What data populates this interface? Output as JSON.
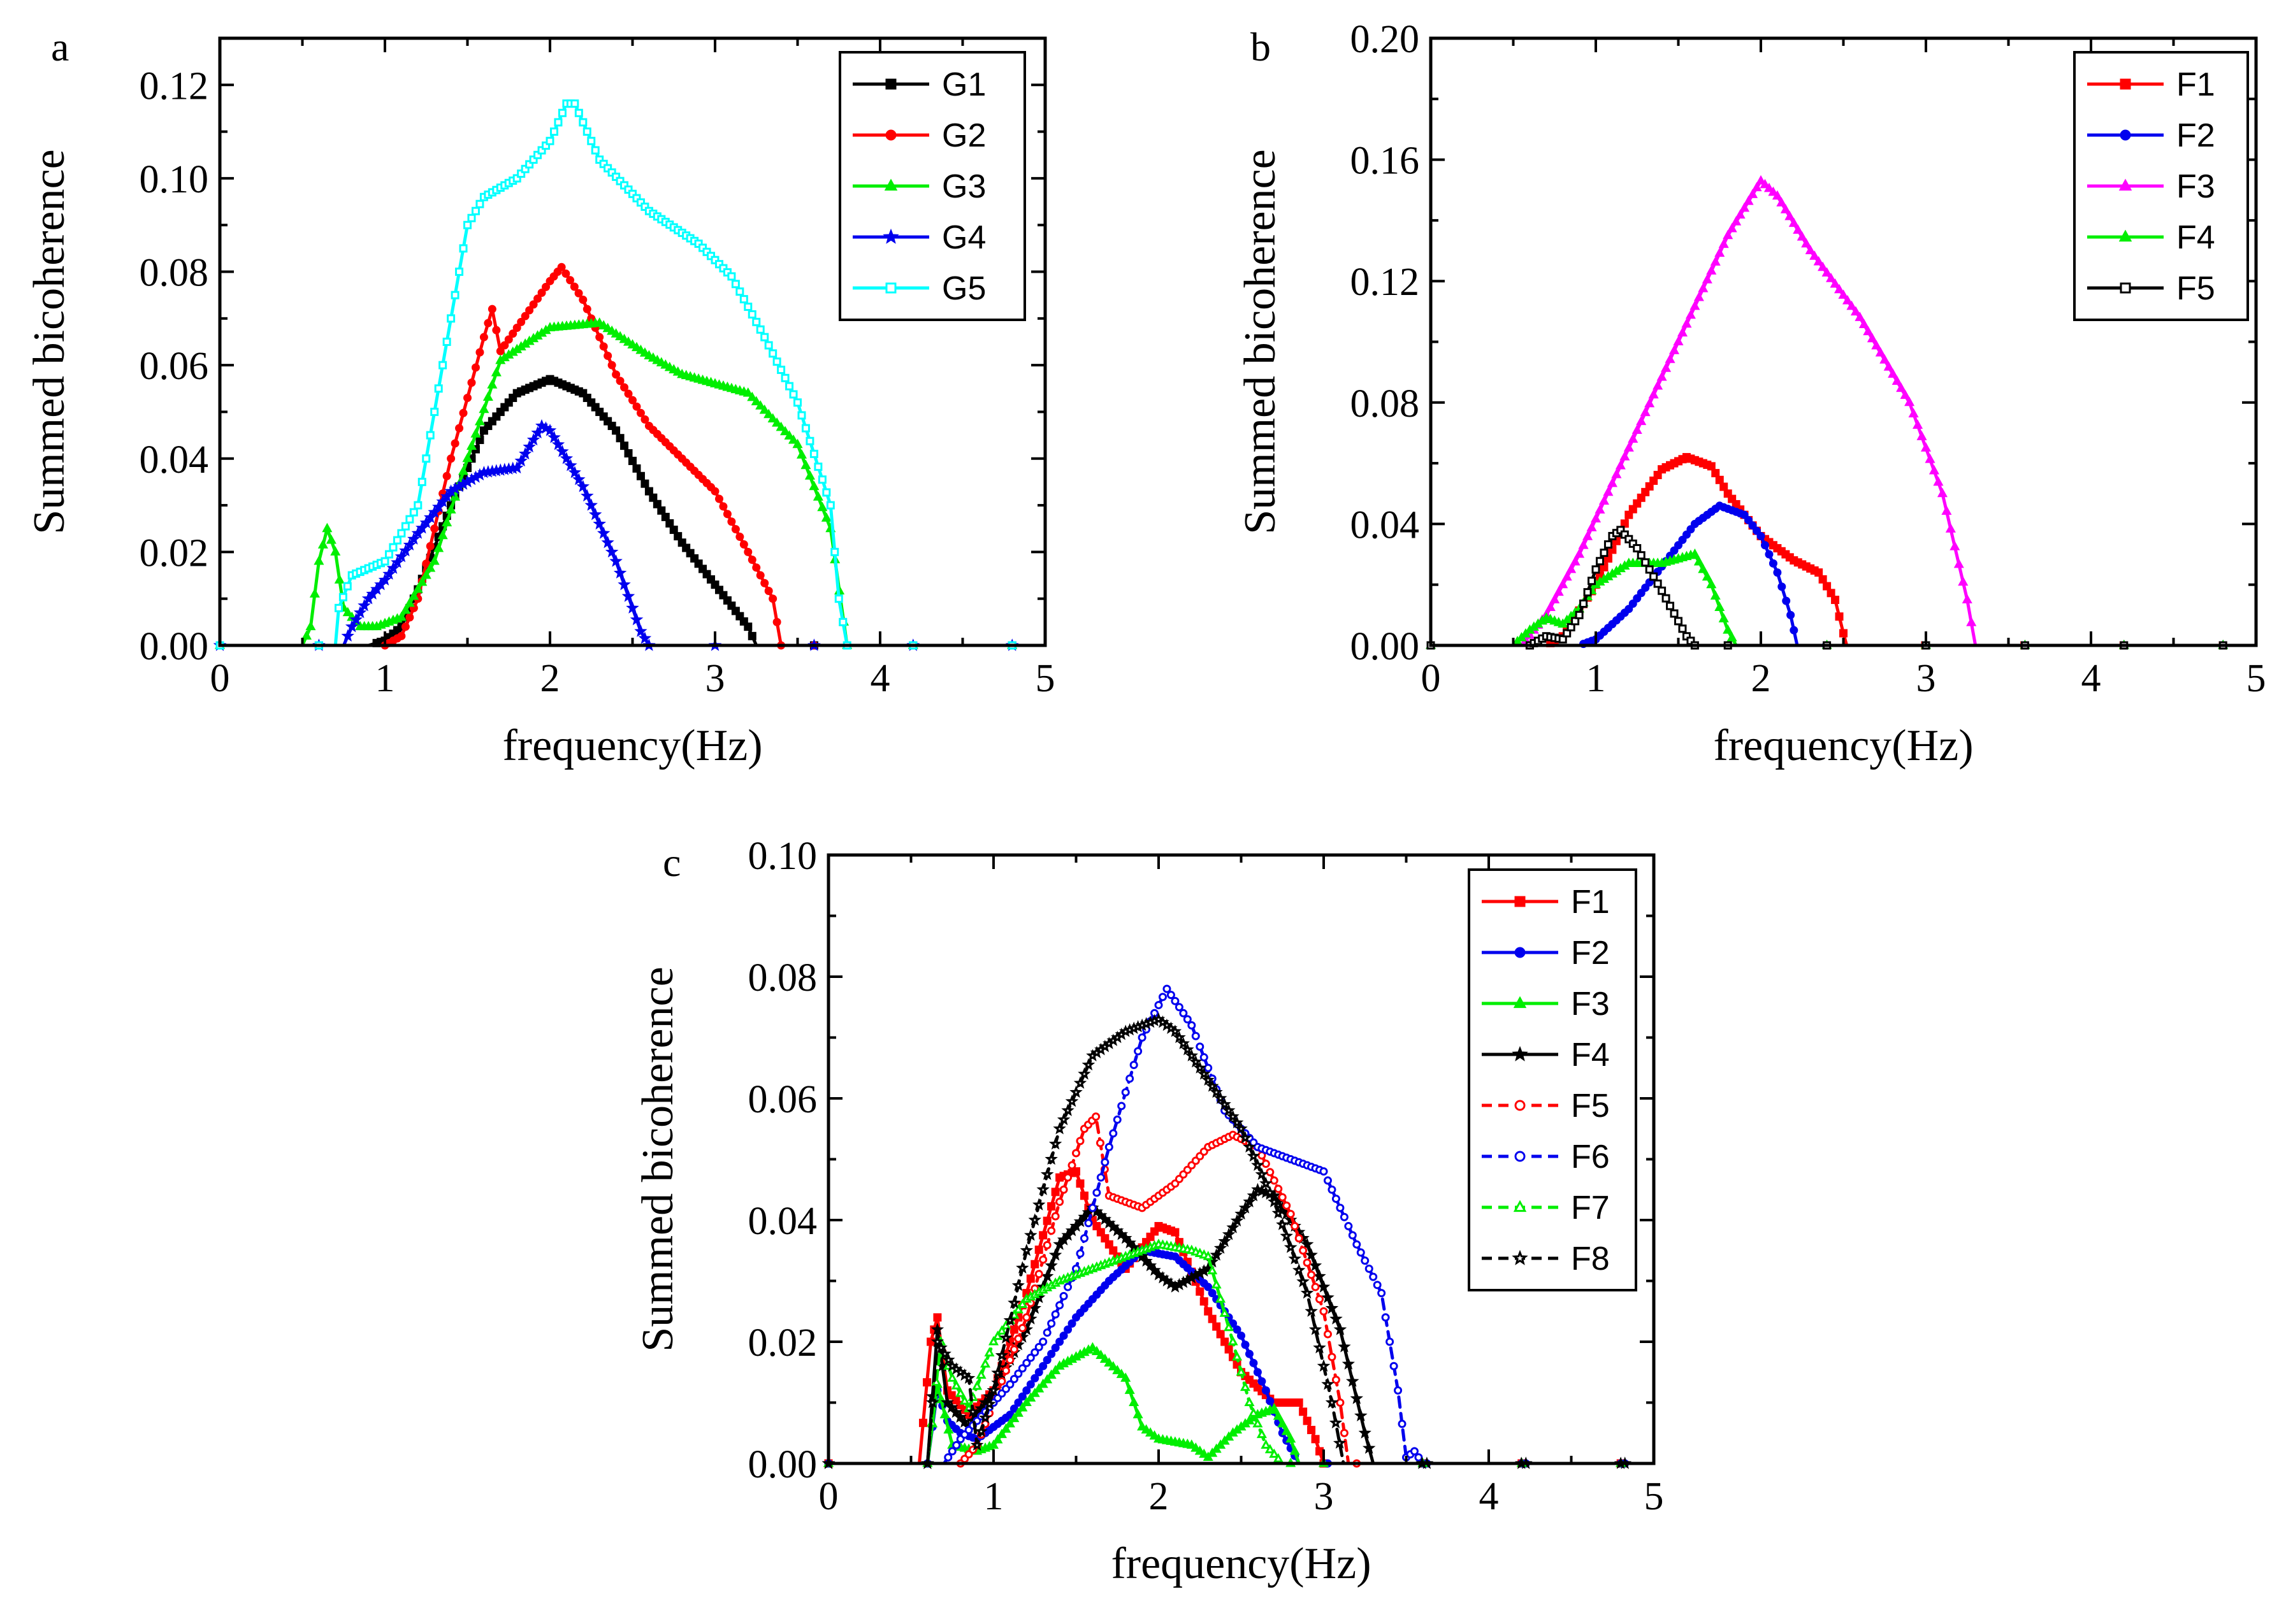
{
  "colors": {
    "black": "#000000",
    "red": "#ff0000",
    "green": "#00ee00",
    "blue": "#0000ee",
    "cyan": "#00ffff",
    "magenta": "#ff00ff"
  },
  "chart_data": [
    {
      "panel": "a",
      "type": "line",
      "xlabel": "frequency(Hz)",
      "ylabel": "Summed bicoherence",
      "xlim": [
        0,
        5
      ],
      "ylim": [
        0,
        0.13
      ],
      "xticks": [
        "0",
        "1",
        "2",
        "3",
        "4",
        "5"
      ],
      "yticks": [
        "0.00",
        "0.02",
        "0.04",
        "0.06",
        "0.08",
        "0.10",
        "0.12"
      ],
      "legend": "top-right",
      "series": [
        {
          "name": "G1",
          "color": "#000000",
          "marker": "square",
          "dash": false,
          "x": [
            0,
            0.9,
            1.0,
            1.1,
            1.2,
            1.4,
            1.6,
            1.8,
            2.0,
            2.2,
            2.4,
            2.6,
            2.8,
            3.0,
            3.2,
            3.25,
            5
          ],
          "y": [
            0,
            0,
            0.001,
            0.004,
            0.012,
            0.03,
            0.046,
            0.054,
            0.057,
            0.054,
            0.046,
            0.033,
            0.022,
            0.013,
            0.004,
            0,
            0
          ]
        },
        {
          "name": "G2",
          "color": "#ff0000",
          "marker": "circle",
          "dash": false,
          "x": [
            0,
            1.0,
            1.1,
            1.2,
            1.4,
            1.6,
            1.65,
            1.7,
            1.8,
            2.0,
            2.07,
            2.2,
            2.4,
            2.6,
            2.8,
            3.0,
            3.2,
            3.35,
            3.4,
            5
          ],
          "y": [
            0,
            0,
            0.002,
            0.01,
            0.04,
            0.066,
            0.072,
            0.063,
            0.068,
            0.078,
            0.081,
            0.074,
            0.058,
            0.047,
            0.04,
            0.033,
            0.02,
            0.01,
            0,
            0
          ]
        },
        {
          "name": "G3",
          "color": "#00ee00",
          "marker": "triangle",
          "dash": false,
          "x": [
            0,
            0.5,
            0.55,
            0.6,
            0.65,
            0.7,
            0.75,
            0.85,
            0.95,
            1.1,
            1.3,
            1.5,
            1.7,
            2.0,
            2.3,
            2.6,
            2.8,
            3.2,
            3.5,
            3.7,
            3.78,
            3.8,
            5
          ],
          "y": [
            0,
            0,
            0.004,
            0.018,
            0.025,
            0.02,
            0.008,
            0.004,
            0.004,
            0.006,
            0.018,
            0.04,
            0.061,
            0.068,
            0.069,
            0.062,
            0.058,
            0.054,
            0.043,
            0.025,
            0.005,
            0,
            0
          ]
        },
        {
          "name": "G4",
          "color": "#0000ee",
          "marker": "star",
          "dash": false,
          "x": [
            0,
            0.75,
            0.8,
            0.9,
            1.0,
            1.2,
            1.4,
            1.6,
            1.8,
            1.95,
            2.0,
            2.2,
            2.4,
            2.55,
            2.6,
            5
          ],
          "y": [
            0,
            0,
            0.004,
            0.01,
            0.014,
            0.024,
            0.033,
            0.037,
            0.038,
            0.047,
            0.046,
            0.034,
            0.018,
            0.003,
            0,
            0
          ]
        },
        {
          "name": "G5",
          "color": "#00ffff",
          "marker": "square-open",
          "dash": false,
          "x": [
            0,
            0.7,
            0.72,
            0.8,
            1.0,
            1.2,
            1.4,
            1.5,
            1.6,
            1.8,
            2.0,
            2.1,
            2.15,
            2.3,
            2.6,
            2.9,
            3.1,
            3.3,
            3.5,
            3.7,
            3.75,
            3.8,
            5
          ],
          "y": [
            0,
            0,
            0.008,
            0.015,
            0.018,
            0.03,
            0.07,
            0.09,
            0.096,
            0.1,
            0.108,
            0.116,
            0.116,
            0.104,
            0.093,
            0.086,
            0.079,
            0.066,
            0.052,
            0.03,
            0.01,
            0,
            0
          ]
        }
      ]
    },
    {
      "panel": "b",
      "type": "line",
      "xlabel": "frequency(Hz)",
      "ylabel": "Summed bicoherence",
      "xlim": [
        0,
        5
      ],
      "ylim": [
        0,
        0.2
      ],
      "xticks": [
        "0",
        "1",
        "2",
        "3",
        "4",
        "5"
      ],
      "yticks": [
        "0.00",
        "0.04",
        "0.08",
        "0.12",
        "0.16",
        "0.20"
      ],
      "legend": "top-right",
      "series": [
        {
          "name": "F1",
          "color": "#ff0000",
          "marker": "square",
          "dash": false,
          "x": [
            0,
            0.7,
            0.8,
            1.0,
            1.2,
            1.4,
            1.55,
            1.7,
            1.8,
            2.0,
            2.2,
            2.35,
            2.45,
            2.5,
            2.52,
            5
          ],
          "y": [
            0,
            0,
            0.003,
            0.02,
            0.043,
            0.058,
            0.062,
            0.059,
            0.05,
            0.036,
            0.028,
            0.024,
            0.015,
            0.004,
            0,
            0
          ]
        },
        {
          "name": "F2",
          "color": "#0000ee",
          "marker": "circle",
          "dash": false,
          "x": [
            0,
            0.9,
            1.0,
            1.2,
            1.4,
            1.6,
            1.75,
            1.9,
            2.0,
            2.1,
            2.18,
            2.22,
            5
          ],
          "y": [
            0,
            0,
            0.002,
            0.012,
            0.026,
            0.04,
            0.046,
            0.043,
            0.036,
            0.024,
            0.01,
            0,
            0
          ]
        },
        {
          "name": "F3",
          "color": "#ff00ff",
          "marker": "triangle",
          "dash": false,
          "x": [
            0,
            0.55,
            0.7,
            0.9,
            1.2,
            1.5,
            1.8,
            2.0,
            2.1,
            2.3,
            2.6,
            2.9,
            3.1,
            3.25,
            3.3,
            5
          ],
          "y": [
            0,
            0,
            0.01,
            0.03,
            0.065,
            0.1,
            0.135,
            0.153,
            0.148,
            0.13,
            0.108,
            0.08,
            0.05,
            0.015,
            0,
            0
          ]
        },
        {
          "name": "F4",
          "color": "#00ee00",
          "marker": "triangle",
          "dash": false,
          "x": [
            0,
            0.5,
            0.6,
            0.7,
            0.8,
            0.9,
            1.0,
            1.2,
            1.4,
            1.6,
            1.7,
            1.8,
            1.85,
            5
          ],
          "y": [
            0,
            0,
            0.005,
            0.009,
            0.007,
            0.012,
            0.02,
            0.027,
            0.027,
            0.03,
            0.02,
            0.005,
            0,
            0
          ]
        },
        {
          "name": "F5",
          "color": "#000000",
          "marker": "square-open",
          "dash": false,
          "x": [
            0,
            0.6,
            0.7,
            0.8,
            0.9,
            1.0,
            1.1,
            1.15,
            1.25,
            1.4,
            1.55,
            1.6,
            5
          ],
          "y": [
            0,
            0,
            0.003,
            0.002,
            0.01,
            0.025,
            0.036,
            0.038,
            0.032,
            0.018,
            0.003,
            0,
            0
          ]
        }
      ]
    },
    {
      "panel": "c",
      "type": "line",
      "xlabel": "frequency(Hz)",
      "ylabel": "Summed bicoherence",
      "xlim": [
        0,
        5
      ],
      "ylim": [
        0,
        0.1
      ],
      "xticks": [
        "0",
        "1",
        "2",
        "3",
        "4",
        "5"
      ],
      "yticks": [
        "0.00",
        "0.02",
        "0.04",
        "0.06",
        "0.08",
        "0.10"
      ],
      "legend": "top-right",
      "series": [
        {
          "name": "F1",
          "color": "#ff0000",
          "marker": "square",
          "dash": false,
          "x": [
            0,
            0.55,
            0.62,
            0.66,
            0.72,
            0.85,
            1.0,
            1.2,
            1.4,
            1.5,
            1.6,
            1.8,
            2.0,
            2.1,
            2.3,
            2.5,
            2.7,
            2.85,
            2.95,
            3.0,
            5
          ],
          "y": [
            0,
            0,
            0.02,
            0.024,
            0.012,
            0.008,
            0.012,
            0.028,
            0.047,
            0.048,
            0.04,
            0.032,
            0.039,
            0.038,
            0.025,
            0.015,
            0.01,
            0.01,
            0.004,
            0,
            0
          ]
        },
        {
          "name": "F2",
          "color": "#0000ee",
          "marker": "circle",
          "dash": false,
          "x": [
            0,
            0.6,
            0.66,
            0.72,
            0.8,
            0.9,
            1.1,
            1.3,
            1.5,
            1.7,
            1.9,
            2.1,
            2.3,
            2.5,
            2.65,
            2.75,
            2.85,
            5
          ],
          "y": [
            0,
            0,
            0.012,
            0.007,
            0.005,
            0.004,
            0.008,
            0.016,
            0.024,
            0.03,
            0.035,
            0.034,
            0.029,
            0.021,
            0.012,
            0.005,
            0,
            0
          ]
        },
        {
          "name": "F3",
          "color": "#00ee00",
          "marker": "triangle",
          "dash": false,
          "x": [
            0,
            0.6,
            0.66,
            0.75,
            0.9,
            1.0,
            1.2,
            1.4,
            1.6,
            1.8,
            1.9,
            2.0,
            2.2,
            2.3,
            2.45,
            2.6,
            2.7,
            2.8,
            2.85,
            5
          ],
          "y": [
            0,
            0,
            0.013,
            0.003,
            0.002,
            0.003,
            0.01,
            0.016,
            0.019,
            0.014,
            0.006,
            0.004,
            0.003,
            0.001,
            0.005,
            0.008,
            0.009,
            0.004,
            0,
            0
          ]
        },
        {
          "name": "F4",
          "color": "#000000",
          "marker": "star",
          "dash": false,
          "x": [
            0,
            0.6,
            0.66,
            0.72,
            0.85,
            1.0,
            1.2,
            1.4,
            1.6,
            1.8,
            2.0,
            2.1,
            2.3,
            2.5,
            2.6,
            2.7,
            2.9,
            3.1,
            3.25,
            3.3,
            5
          ],
          "y": [
            0,
            0,
            0.022,
            0.01,
            0.006,
            0.012,
            0.022,
            0.036,
            0.042,
            0.037,
            0.031,
            0.029,
            0.032,
            0.041,
            0.045,
            0.044,
            0.036,
            0.022,
            0.005,
            0,
            0
          ]
        },
        {
          "name": "F5",
          "color": "#ff0000",
          "marker": "circle-open",
          "dash": true,
          "x": [
            0,
            0.8,
            0.9,
            1.0,
            1.2,
            1.4,
            1.55,
            1.62,
            1.7,
            1.9,
            2.1,
            2.3,
            2.45,
            2.6,
            2.8,
            3.0,
            3.1,
            3.15,
            5
          ],
          "y": [
            0,
            0,
            0.003,
            0.01,
            0.024,
            0.043,
            0.055,
            0.057,
            0.044,
            0.042,
            0.046,
            0.052,
            0.054,
            0.052,
            0.041,
            0.025,
            0.01,
            0,
            0
          ]
        },
        {
          "name": "F6",
          "color": "#0000ee",
          "marker": "circle-open",
          "dash": true,
          "x": [
            0,
            0.7,
            0.8,
            0.9,
            1.1,
            1.3,
            1.5,
            1.7,
            1.9,
            2.05,
            2.2,
            2.4,
            2.6,
            2.8,
            3.0,
            3.2,
            3.35,
            3.45,
            3.5,
            3.55,
            3.6,
            5
          ],
          "y": [
            0,
            0,
            0.004,
            0.007,
            0.013,
            0.02,
            0.032,
            0.052,
            0.07,
            0.078,
            0.072,
            0.058,
            0.052,
            0.05,
            0.048,
            0.036,
            0.028,
            0.012,
            0.001,
            0.002,
            0,
            0
          ]
        },
        {
          "name": "F7",
          "color": "#00ee00",
          "marker": "triangle-open",
          "dash": true,
          "x": [
            0,
            0.6,
            0.68,
            0.75,
            0.85,
            1.0,
            1.2,
            1.4,
            1.6,
            1.8,
            2.0,
            2.2,
            2.3,
            2.45,
            2.55,
            2.65,
            2.75,
            5
          ],
          "y": [
            0,
            0,
            0.02,
            0.014,
            0.009,
            0.02,
            0.027,
            0.03,
            0.032,
            0.034,
            0.036,
            0.035,
            0.034,
            0.02,
            0.01,
            0.003,
            0,
            0
          ]
        },
        {
          "name": "F8",
          "color": "#000000",
          "marker": "star-open",
          "dash": true,
          "x": [
            0,
            0.6,
            0.66,
            0.75,
            0.85,
            0.9,
            1.0,
            1.2,
            1.4,
            1.6,
            1.8,
            2.0,
            2.1,
            2.3,
            2.5,
            2.7,
            2.9,
            3.05,
            3.12,
            5
          ],
          "y": [
            0,
            0,
            0.02,
            0.016,
            0.014,
            0.003,
            0.012,
            0.035,
            0.055,
            0.067,
            0.071,
            0.073,
            0.071,
            0.063,
            0.055,
            0.043,
            0.028,
            0.01,
            0,
            0
          ]
        }
      ]
    }
  ]
}
